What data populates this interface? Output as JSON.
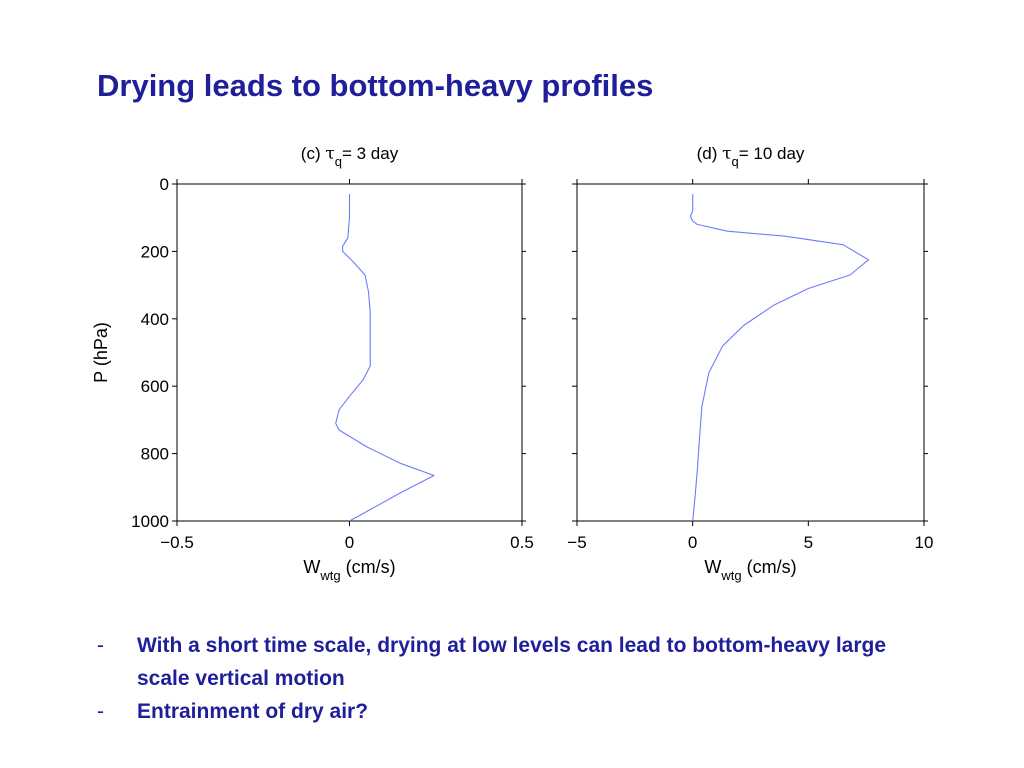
{
  "slide": {
    "title": "Drying leads to bottom-heavy profiles",
    "bullets": [
      {
        "marker": "-",
        "text": "With a short time scale, drying at low levels can lead to bottom-heavy large scale vertical motion"
      },
      {
        "marker": "-",
        "text": "Entrainment of dry air?"
      }
    ]
  },
  "chart_data": [
    {
      "type": "line",
      "panel": "c",
      "title_prefix": "(c) ",
      "title_symbol": "τ",
      "title_subscript": "q",
      "title_suffix": "= 3 day",
      "xlabel_main": "W",
      "xlabel_sub": "wtg",
      "xlabel_unit": " (cm/s)",
      "ylabel": "P (hPa)",
      "xlim": [
        -0.5,
        0.5
      ],
      "ylim": [
        1000,
        0
      ],
      "xticks": [
        -0.5,
        0,
        0.5
      ],
      "xtick_labels": [
        "−0.5",
        "0",
        "0.5"
      ],
      "yticks": [
        0,
        200,
        400,
        600,
        800,
        1000
      ],
      "ytick_labels": [
        "0",
        "200",
        "400",
        "600",
        "800",
        "1000"
      ],
      "line_color": "#6f7bff",
      "series": [
        {
          "x": [
            0.0,
            0.0,
            -0.005,
            -0.02,
            -0.02,
            0.01,
            0.045,
            0.055,
            0.06,
            0.06,
            0.06,
            0.06,
            0.04,
            0.0,
            -0.03,
            -0.04,
            -0.03,
            0.05,
            0.15,
            0.245,
            0.15,
            0.08,
            0.0
          ],
          "y": [
            30,
            100,
            160,
            185,
            200,
            230,
            270,
            320,
            380,
            440,
            480,
            540,
            580,
            630,
            670,
            710,
            730,
            780,
            830,
            865,
            915,
            955,
            1000
          ]
        }
      ]
    },
    {
      "type": "line",
      "panel": "d",
      "title_prefix": "(d) ",
      "title_symbol": "τ",
      "title_subscript": "q",
      "title_suffix": "= 10 day",
      "xlabel_main": "W",
      "xlabel_sub": "wtg",
      "xlabel_unit": " (cm/s)",
      "ylabel": "",
      "xlim": [
        -5,
        10
      ],
      "ylim": [
        1000,
        0
      ],
      "xticks": [
        -5,
        0,
        5,
        10
      ],
      "xtick_labels": [
        "−5",
        "0",
        "5",
        "10"
      ],
      "yticks": [
        0,
        200,
        400,
        600,
        800,
        1000
      ],
      "ytick_labels": [],
      "line_color": "#6f7bff",
      "series": [
        {
          "x": [
            0.0,
            0.0,
            -0.1,
            0.0,
            0.2,
            1.5,
            4.0,
            6.5,
            7.6,
            6.8,
            5.0,
            3.5,
            2.2,
            1.3,
            0.7,
            0.4,
            0.3,
            0.2,
            0.1,
            0.0
          ],
          "y": [
            30,
            80,
            95,
            110,
            120,
            140,
            155,
            180,
            225,
            270,
            310,
            360,
            420,
            480,
            560,
            660,
            750,
            850,
            930,
            1000
          ]
        }
      ]
    }
  ]
}
